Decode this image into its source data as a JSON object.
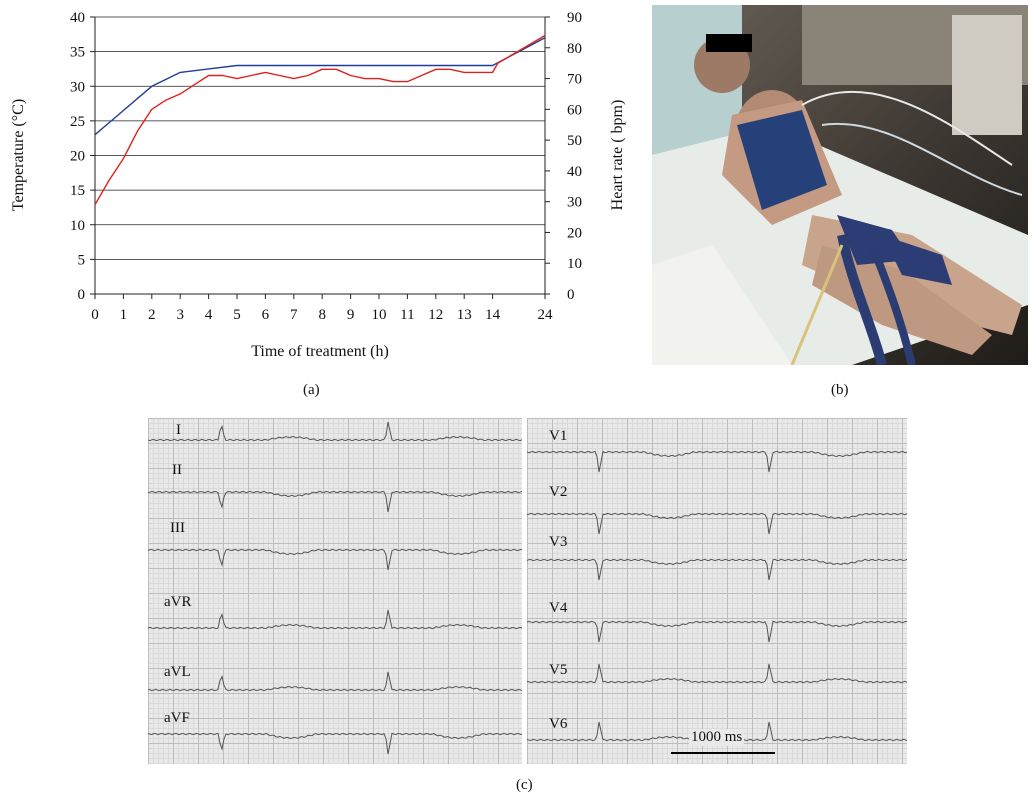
{
  "figure": {
    "panel_a_label": "(a)",
    "panel_b_label": "(b)",
    "panel_c_label": "(c)"
  },
  "chart_data": {
    "type": "line",
    "xlabel": "Time of treatment (h)",
    "ylabel_left": "Temperature (°C)",
    "ylabel_right": "Heart rate ( bpm)",
    "x_ticks": [
      "0",
      "1",
      "2",
      "3",
      "4",
      "5",
      "6",
      "7",
      "8",
      "9",
      "10",
      "11",
      "12",
      "13",
      "14",
      "24"
    ],
    "y_left_ticks": [
      0,
      5,
      10,
      15,
      20,
      25,
      30,
      35,
      40
    ],
    "y_right_ticks": [
      0,
      10,
      20,
      30,
      40,
      50,
      60,
      70,
      80,
      90
    ],
    "ylim_left": [
      0,
      40
    ],
    "ylim_right": [
      0,
      90
    ],
    "grid": "horizontal",
    "series": [
      {
        "axis": "left",
        "color": "#1f3d99",
        "x": [
          0,
          1,
          2,
          3,
          4,
          5,
          6,
          7,
          8,
          9,
          10,
          11,
          12,
          13,
          14,
          24
        ],
        "values": [
          23,
          26.5,
          30,
          32,
          32.5,
          33,
          33,
          33,
          33,
          33,
          33,
          33,
          33,
          33,
          33,
          37
        ]
      },
      {
        "axis": "right",
        "color": "#e0201c",
        "x": [
          0,
          0.5,
          1,
          1.5,
          2,
          2.5,
          3,
          3.5,
          4,
          4.5,
          5,
          5.5,
          6,
          6.5,
          7,
          7.5,
          8,
          8.5,
          9,
          9.5,
          10,
          10.5,
          11,
          11.5,
          12,
          12.5,
          13,
          13.5,
          14,
          15,
          24
        ],
        "values": [
          29,
          37,
          44,
          53,
          60,
          63,
          65,
          68,
          71,
          71,
          70,
          71,
          72,
          71,
          70,
          71,
          73,
          73,
          71,
          70,
          70,
          69,
          69,
          71,
          73,
          73,
          72,
          72,
          72,
          75,
          84
        ]
      }
    ]
  },
  "ecg": {
    "left_leads": [
      "I",
      "II",
      "III",
      "aVR",
      "aVL",
      "aVF"
    ],
    "right_leads": [
      "V1",
      "V2",
      "V3",
      "V4",
      "V5",
      "V6"
    ],
    "scale_bar_label": "1000 ms"
  },
  "photo": {
    "description_icon": "patient-photo"
  },
  "colors": {
    "temperature_line": "#1f3d99",
    "heart_rate_line": "#e0201c",
    "ecg_grid": "#bdbdbd",
    "ecg_trace": "#555555"
  }
}
